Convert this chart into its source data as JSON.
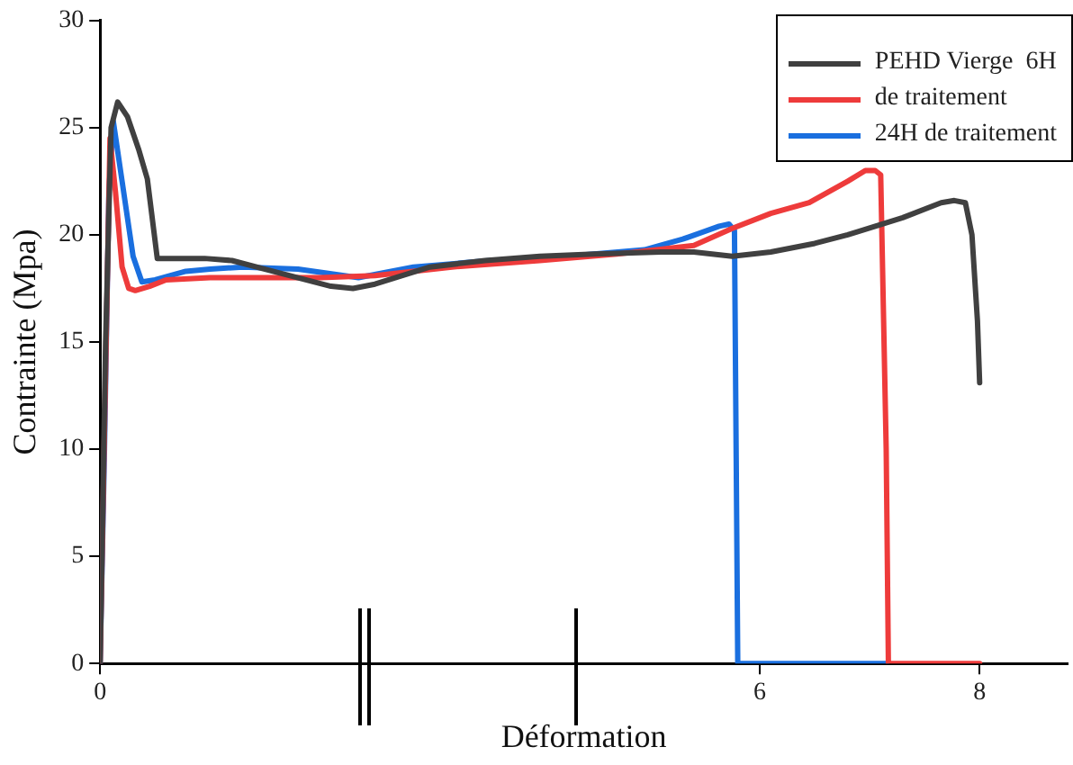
{
  "chart_data": {
    "type": "line",
    "xlabel": "Déformation",
    "ylabel": "Contrainte (Mpa)",
    "xlim": [
      0,
      8.8
    ],
    "xticks": [
      0,
      6,
      8
    ],
    "ylim": [
      0,
      30
    ],
    "yticks": [
      0,
      5,
      10,
      15,
      20,
      25,
      30
    ],
    "grid": false,
    "legend": "top right",
    "marker": "none",
    "line_style": "solid",
    "series": [
      {
        "name": "PEHD Vierge  6H",
        "color": "#404040",
        "x": [
          0,
          0.05,
          0.1,
          0.16,
          0.25,
          0.35,
          0.43,
          0.52,
          0.7,
          0.95,
          1.2,
          1.5,
          1.8,
          2.1,
          2.3,
          2.5,
          3.0,
          3.5,
          4.0,
          4.5,
          5.1,
          5.4,
          5.75,
          6.1,
          6.5,
          6.8,
          7.3,
          7.65,
          7.77,
          7.87,
          7.93,
          7.98,
          8.0
        ],
        "values": [
          0,
          15,
          25,
          26.2,
          25.5,
          24,
          22.6,
          18.9,
          18.9,
          18.9,
          18.8,
          18.4,
          18.0,
          17.6,
          17.5,
          17.7,
          18.5,
          18.8,
          19.0,
          19.1,
          19.2,
          19.2,
          19.0,
          19.2,
          19.6,
          20.0,
          20.8,
          21.5,
          21.6,
          21.5,
          20,
          16,
          13.1
        ]
      },
      {
        "name": "de traitement",
        "color": "#ee3b3b",
        "x": [
          0,
          0.09,
          0.14,
          0.2,
          0.26,
          0.32,
          0.45,
          0.6,
          1.0,
          1.3,
          1.7,
          2.0,
          2.5,
          3.2,
          4.0,
          4.7,
          5.4,
          5.75,
          6.1,
          6.45,
          6.8,
          6.96,
          7.05,
          7.1,
          7.15,
          7.17,
          7.5,
          8.0
        ],
        "values": [
          0,
          24.5,
          22,
          18.5,
          17.5,
          17.4,
          17.6,
          17.9,
          18.0,
          18.0,
          18.0,
          18.0,
          18.1,
          18.5,
          18.8,
          19.1,
          19.5,
          20.3,
          21.0,
          21.5,
          22.5,
          23.0,
          23.0,
          22.8,
          10,
          0,
          0,
          0
        ]
      },
      {
        "name": "24H de traitement",
        "color": "#1a6fdf",
        "x": [
          0,
          0.04,
          0.08,
          0.12,
          0.2,
          0.3,
          0.38,
          0.5,
          0.78,
          1.0,
          1.3,
          1.8,
          2.35,
          2.85,
          3.55,
          4.25,
          4.95,
          5.3,
          5.63,
          5.72,
          5.77,
          5.8,
          6.5,
          7.15
        ],
        "values": [
          0,
          10,
          22,
          25.3,
          22.5,
          19,
          17.8,
          17.9,
          18.3,
          18.4,
          18.5,
          18.4,
          18.0,
          18.5,
          18.8,
          19.0,
          19.3,
          19.8,
          20.4,
          20.5,
          20.2,
          0,
          0,
          0
        ]
      }
    ]
  }
}
